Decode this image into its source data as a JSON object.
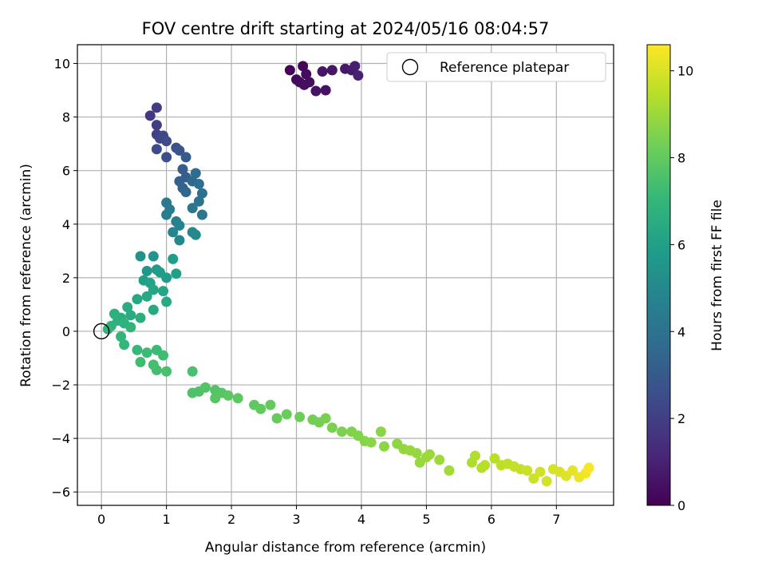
{
  "chart_data": {
    "type": "scatter",
    "title": "FOV centre drift starting at 2024/05/16 08:04:57",
    "xlabel": "Angular distance from reference (arcmin)",
    "ylabel": "Rotation from reference (arcmin)",
    "xlim": [
      -0.37,
      7.88
    ],
    "ylim": [
      -6.5,
      10.7
    ],
    "xticks": [
      0,
      1,
      2,
      3,
      4,
      5,
      6,
      7
    ],
    "yticks": [
      -6,
      -4,
      -2,
      0,
      2,
      4,
      6,
      8,
      10
    ],
    "grid": true,
    "colormap": "viridis",
    "colorbar": {
      "label": "Hours from first FF file",
      "range": [
        0,
        10.6
      ],
      "ticks": [
        0,
        2,
        4,
        6,
        8,
        10
      ],
      "colors": [
        "#440154",
        "#482878",
        "#3e4989",
        "#31688e",
        "#26828e",
        "#1f9e89",
        "#35b779",
        "#6ece58",
        "#b5de2b",
        "#fde725"
      ]
    },
    "legend": {
      "position": "top-right",
      "entries": [
        "Reference platepar"
      ]
    },
    "reference_point": {
      "x": 0,
      "y": 0,
      "label": "Reference platepar"
    },
    "series": [
      {
        "points": [
          [
            2.9,
            9.75,
            0.1
          ],
          [
            3.0,
            9.4,
            0.2
          ],
          [
            3.05,
            9.3,
            0.3
          ],
          [
            3.1,
            9.9,
            0.2
          ],
          [
            3.12,
            9.2,
            0.4
          ],
          [
            3.15,
            9.6,
            0.3
          ],
          [
            3.2,
            9.3,
            0.4
          ],
          [
            3.3,
            8.97,
            0.5
          ],
          [
            3.4,
            9.7,
            0.6
          ],
          [
            3.45,
            9.0,
            0.5
          ],
          [
            3.55,
            9.75,
            0.6
          ],
          [
            3.75,
            9.8,
            0.7
          ],
          [
            3.85,
            9.75,
            0.8
          ],
          [
            3.9,
            9.9,
            0.9
          ],
          [
            3.95,
            9.55,
            1.0
          ],
          [
            0.75,
            8.05,
            1.8
          ],
          [
            0.85,
            8.35,
            1.9
          ],
          [
            0.85,
            7.7,
            2.0
          ],
          [
            0.85,
            7.35,
            2.1
          ],
          [
            0.9,
            7.2,
            2.2
          ],
          [
            0.95,
            7.3,
            2.3
          ],
          [
            0.85,
            6.8,
            2.4
          ],
          [
            1.0,
            7.1,
            2.5
          ],
          [
            1.0,
            6.5,
            2.6
          ],
          [
            1.15,
            6.85,
            2.7
          ],
          [
            1.2,
            6.75,
            2.8
          ],
          [
            1.3,
            6.5,
            3.0
          ],
          [
            1.25,
            6.05,
            3.1
          ],
          [
            1.3,
            5.75,
            3.2
          ],
          [
            1.2,
            5.6,
            3.3
          ],
          [
            1.25,
            5.35,
            3.4
          ],
          [
            1.3,
            5.2,
            3.5
          ],
          [
            1.4,
            5.6,
            3.6
          ],
          [
            1.45,
            5.9,
            3.7
          ],
          [
            1.5,
            5.5,
            3.8
          ],
          [
            1.55,
            5.15,
            3.9
          ],
          [
            1.5,
            4.85,
            4.0
          ],
          [
            1.55,
            4.35,
            4.1
          ],
          [
            1.4,
            4.6,
            4.2
          ],
          [
            1.0,
            4.8,
            4.3
          ],
          [
            1.05,
            4.55,
            4.4
          ],
          [
            1.0,
            4.35,
            4.5
          ],
          [
            1.15,
            4.1,
            4.6
          ],
          [
            1.2,
            3.95,
            4.7
          ],
          [
            1.1,
            3.7,
            4.8
          ],
          [
            1.2,
            3.4,
            4.9
          ],
          [
            1.4,
            3.7,
            5.0
          ],
          [
            1.45,
            3.6,
            5.0
          ],
          [
            0.6,
            2.8,
            5.4
          ],
          [
            0.8,
            2.8,
            5.5
          ],
          [
            0.7,
            2.25,
            5.6
          ],
          [
            0.85,
            2.3,
            5.7
          ],
          [
            0.9,
            2.2,
            5.8
          ],
          [
            1.0,
            2.0,
            5.8
          ],
          [
            1.1,
            2.7,
            5.9
          ],
          [
            1.15,
            2.15,
            6.0
          ],
          [
            0.65,
            1.9,
            6.0
          ],
          [
            0.75,
            1.8,
            6.1
          ],
          [
            0.8,
            1.55,
            6.2
          ],
          [
            0.95,
            1.5,
            6.2
          ],
          [
            0.7,
            1.3,
            6.3
          ],
          [
            0.55,
            1.2,
            6.3
          ],
          [
            0.8,
            0.8,
            6.4
          ],
          [
            1.0,
            1.1,
            6.4
          ],
          [
            0.4,
            0.9,
            6.5
          ],
          [
            0.45,
            0.6,
            6.5
          ],
          [
            0.6,
            0.5,
            6.6
          ],
          [
            0.3,
            0.5,
            6.6
          ],
          [
            0.2,
            0.65,
            6.7
          ],
          [
            0.25,
            0.4,
            6.7
          ],
          [
            0.15,
            0.2,
            6.8
          ],
          [
            0.35,
            0.3,
            6.8
          ],
          [
            0.45,
            0.15,
            6.9
          ],
          [
            0.1,
            0.08,
            6.9
          ],
          [
            0.3,
            -0.2,
            7.0
          ],
          [
            0.35,
            -0.5,
            7.0
          ],
          [
            0.55,
            -0.7,
            7.1
          ],
          [
            0.7,
            -0.8,
            7.2
          ],
          [
            0.85,
            -0.7,
            7.2
          ],
          [
            0.95,
            -0.9,
            7.3
          ],
          [
            0.6,
            -1.15,
            7.3
          ],
          [
            0.8,
            -1.25,
            7.4
          ],
          [
            0.85,
            -1.45,
            7.4
          ],
          [
            1.0,
            -1.5,
            7.5
          ],
          [
            1.4,
            -1.5,
            7.5
          ],
          [
            1.4,
            -2.3,
            7.6
          ],
          [
            1.5,
            -2.25,
            7.6
          ],
          [
            1.6,
            -2.1,
            7.7
          ],
          [
            1.75,
            -2.2,
            7.7
          ],
          [
            1.75,
            -2.5,
            7.8
          ],
          [
            1.85,
            -2.3,
            7.8
          ],
          [
            1.95,
            -2.4,
            7.85
          ],
          [
            2.1,
            -2.5,
            7.9
          ],
          [
            2.35,
            -2.75,
            7.95
          ],
          [
            2.45,
            -2.9,
            8.0
          ],
          [
            2.6,
            -2.75,
            8.05
          ],
          [
            2.7,
            -3.25,
            8.1
          ],
          [
            2.85,
            -3.1,
            8.15
          ],
          [
            3.05,
            -3.2,
            8.2
          ],
          [
            3.25,
            -3.3,
            8.3
          ],
          [
            3.35,
            -3.4,
            8.35
          ],
          [
            3.45,
            -3.25,
            8.4
          ],
          [
            3.55,
            -3.6,
            8.45
          ],
          [
            3.7,
            -3.75,
            8.5
          ],
          [
            3.85,
            -3.75,
            8.55
          ],
          [
            3.95,
            -3.9,
            8.6
          ],
          [
            4.05,
            -4.1,
            8.65
          ],
          [
            4.15,
            -4.15,
            8.7
          ],
          [
            4.3,
            -3.75,
            8.7
          ],
          [
            4.35,
            -4.3,
            8.75
          ],
          [
            4.55,
            -4.2,
            8.8
          ],
          [
            4.65,
            -4.4,
            8.85
          ],
          [
            4.75,
            -4.45,
            8.9
          ],
          [
            4.85,
            -4.55,
            8.9
          ],
          [
            4.9,
            -4.9,
            8.95
          ],
          [
            5.0,
            -4.7,
            9.0
          ],
          [
            5.05,
            -4.6,
            9.0
          ],
          [
            5.2,
            -4.8,
            9.05
          ],
          [
            5.35,
            -5.2,
            9.1
          ],
          [
            5.7,
            -4.9,
            9.3
          ],
          [
            5.75,
            -4.65,
            9.35
          ],
          [
            5.85,
            -5.1,
            9.4
          ],
          [
            5.9,
            -5.0,
            9.45
          ],
          [
            6.05,
            -4.75,
            9.5
          ],
          [
            6.15,
            -5.0,
            9.55
          ],
          [
            6.25,
            -4.95,
            9.6
          ],
          [
            6.35,
            -5.05,
            9.65
          ],
          [
            6.45,
            -5.15,
            9.7
          ],
          [
            6.55,
            -5.2,
            9.75
          ],
          [
            6.65,
            -5.5,
            9.8
          ],
          [
            6.75,
            -5.25,
            9.85
          ],
          [
            6.85,
            -5.6,
            9.9
          ],
          [
            6.95,
            -5.15,
            9.95
          ],
          [
            7.05,
            -5.25,
            10.0
          ],
          [
            7.15,
            -5.4,
            10.1
          ],
          [
            7.25,
            -5.2,
            10.2
          ],
          [
            7.35,
            -5.45,
            10.3
          ],
          [
            7.45,
            -5.3,
            10.4
          ],
          [
            7.5,
            -5.1,
            10.5
          ]
        ]
      }
    ]
  }
}
